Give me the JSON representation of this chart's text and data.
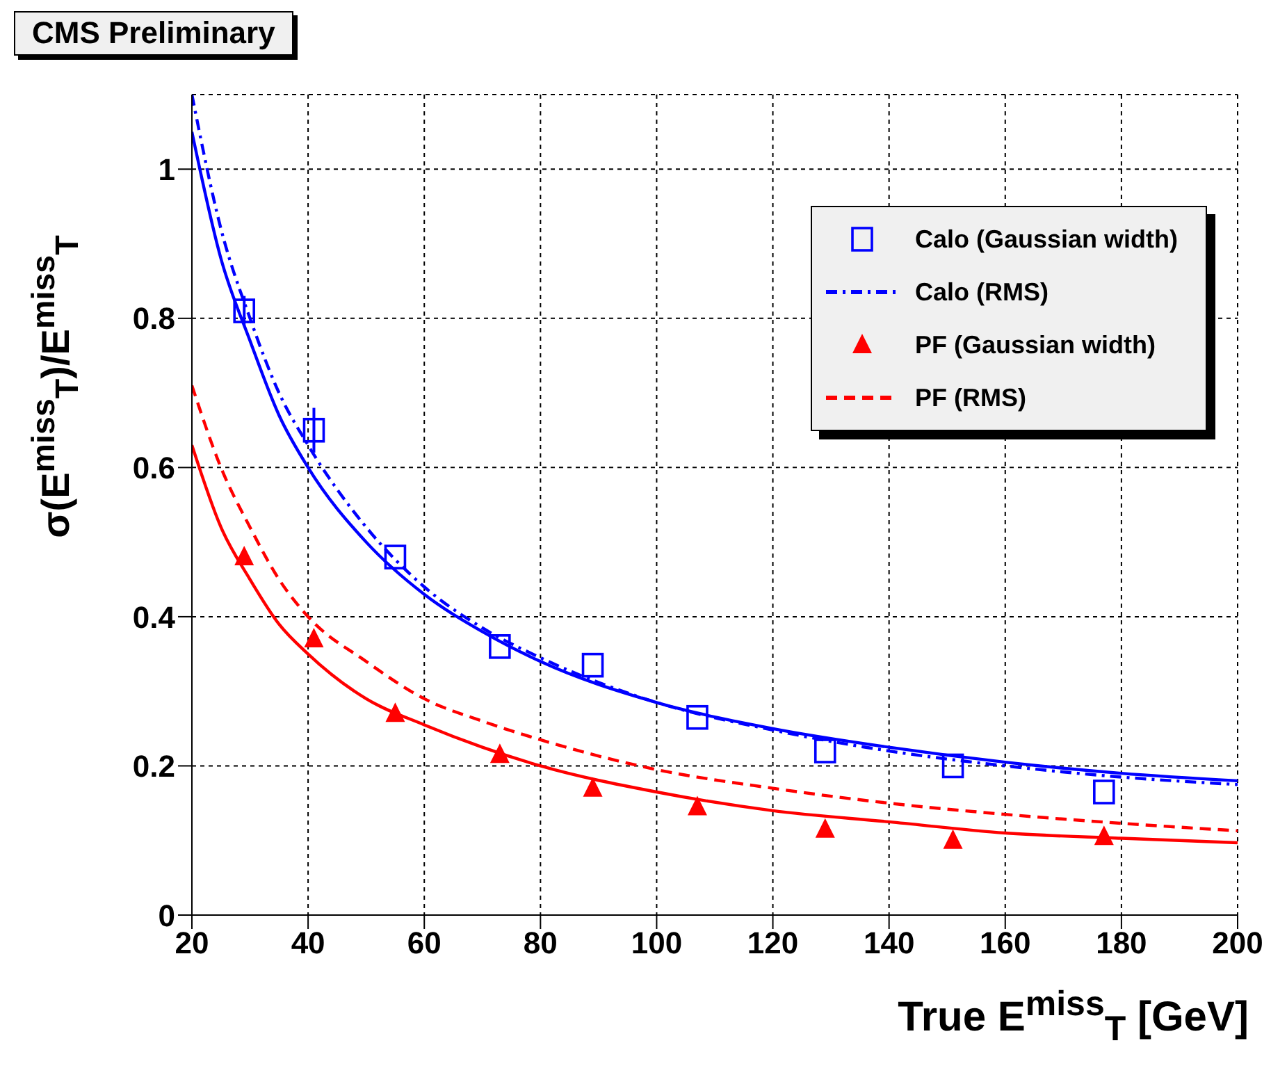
{
  "chart_data": {
    "type": "scatter",
    "title": "CMS Preliminary",
    "xlabel": "True E$^{miss}$$_{T}$ [GeV]",
    "ylabel": "σ(E$^{miss}$$_{T}$)/E$^{miss}$$_{T}$",
    "xlim": [
      20,
      200
    ],
    "xticks": [
      20,
      40,
      60,
      80,
      100,
      120,
      140,
      160,
      180,
      200
    ],
    "ylim": [
      0,
      1.1
    ],
    "yticks": [
      0,
      0.2,
      0.4,
      0.6,
      0.8,
      1
    ],
    "grid": true,
    "legend": "top right",
    "series": [
      {
        "name": "Calo (Gaussian width)",
        "marker": "square",
        "color": "#0000ff",
        "x": [
          29,
          41,
          55,
          73,
          89,
          107,
          129,
          151,
          177
        ],
        "values": [
          0.81,
          0.65,
          0.48,
          0.36,
          0.335,
          0.265,
          0.22,
          0.2,
          0.165
        ],
        "errors": [
          0.02,
          0.03,
          null,
          null,
          null,
          null,
          null,
          null,
          null
        ]
      },
      {
        "type": "line",
        "line_style": "solid",
        "color": "#0000ff",
        "x": [
          20,
          25,
          30,
          35,
          40,
          50,
          60,
          70,
          80,
          100,
          120,
          140,
          160,
          180,
          200
        ],
        "values": [
          1.05,
          0.88,
          0.77,
          0.67,
          0.6,
          0.5,
          0.43,
          0.38,
          0.34,
          0.285,
          0.25,
          0.225,
          0.205,
          0.19,
          0.18
        ]
      },
      {
        "name": "Calo (RMS)",
        "type": "line",
        "line_style": "dashdot",
        "color": "#0000ff",
        "x": [
          20,
          25,
          30,
          35,
          40,
          50,
          60,
          70,
          80,
          100,
          120,
          140,
          160,
          180,
          200
        ],
        "values": [
          1.1,
          0.92,
          0.8,
          0.7,
          0.63,
          0.52,
          0.44,
          0.385,
          0.345,
          0.285,
          0.248,
          0.22,
          0.2,
          0.185,
          0.175
        ]
      },
      {
        "name": "PF (Gaussian width)",
        "marker": "triangle",
        "color": "#ff0000",
        "x": [
          29,
          41,
          55,
          73,
          89,
          107,
          129,
          151,
          177
        ],
        "values": [
          0.48,
          0.37,
          0.27,
          0.215,
          0.17,
          0.145,
          0.115,
          0.1,
          0.105
        ]
      },
      {
        "type": "line",
        "line_style": "solid",
        "color": "#ff0000",
        "x": [
          20,
          25,
          30,
          35,
          40,
          50,
          60,
          70,
          80,
          100,
          120,
          140,
          160,
          180,
          200
        ],
        "values": [
          0.63,
          0.52,
          0.45,
          0.39,
          0.35,
          0.29,
          0.255,
          0.225,
          0.2,
          0.165,
          0.14,
          0.125,
          0.11,
          0.103,
          0.097
        ]
      },
      {
        "name": "PF (RMS)",
        "type": "line",
        "line_style": "dashed",
        "color": "#ff0000",
        "x": [
          20,
          25,
          30,
          35,
          40,
          50,
          60,
          70,
          80,
          100,
          120,
          140,
          160,
          180,
          200
        ],
        "values": [
          0.71,
          0.6,
          0.52,
          0.45,
          0.4,
          0.34,
          0.29,
          0.26,
          0.235,
          0.195,
          0.17,
          0.15,
          0.135,
          0.123,
          0.113
        ]
      }
    ]
  }
}
